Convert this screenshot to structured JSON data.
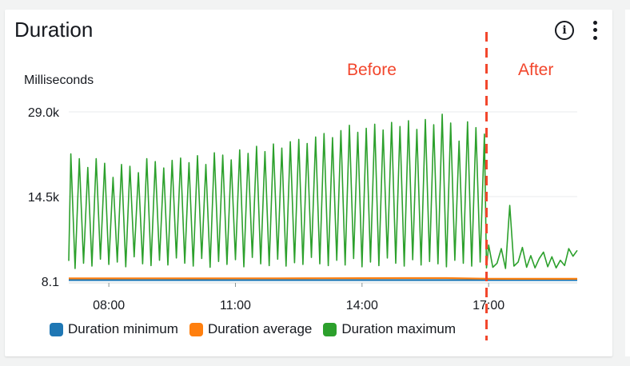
{
  "widget": {
    "title": "Duration"
  },
  "chart_data": {
    "type": "line",
    "title": "Duration",
    "ylabel": "Milliseconds",
    "yticks": [
      "29.0k",
      "14.5k",
      "8.1"
    ],
    "yticks_values": [
      29000,
      14500,
      8.1
    ],
    "ylim": [
      8.1,
      29000
    ],
    "xticks": [
      "08:00",
      "11:00",
      "14:00",
      "17:00"
    ],
    "xticks_hours": [
      8,
      11,
      14,
      17
    ],
    "xlim_hours": [
      7.05,
      19.1
    ],
    "grid": "horizontal",
    "legend_position": "bottom",
    "annotations": {
      "before": "Before",
      "after": "After",
      "divider_hour": 16.95
    },
    "series": [
      {
        "name": "Duration minimum",
        "color": "#1f77b4",
        "x": [
          7.05,
          8,
          9,
          10,
          11,
          12,
          13,
          14,
          15,
          16,
          17,
          18,
          19.1
        ],
        "values": [
          220,
          220,
          220,
          220,
          220,
          220,
          220,
          220,
          220,
          220,
          220,
          220,
          220
        ]
      },
      {
        "name": "Duration average",
        "color": "#ff7f0e",
        "x": [
          7.05,
          8,
          9,
          10,
          11,
          12,
          13,
          14,
          15,
          16,
          17,
          18,
          19.1
        ],
        "values": [
          500,
          500,
          520,
          500,
          510,
          520,
          530,
          540,
          560,
          560,
          450,
          430,
          430
        ]
      },
      {
        "name": "Duration maximum",
        "color": "#2ca02c",
        "x": [
          7.05,
          7.1,
          7.2,
          7.3,
          7.4,
          7.5,
          7.6,
          7.7,
          7.8,
          7.9,
          8.0,
          8.1,
          8.2,
          8.3,
          8.4,
          8.5,
          8.6,
          8.7,
          8.8,
          8.9,
          9.0,
          9.1,
          9.2,
          9.3,
          9.4,
          9.5,
          9.6,
          9.7,
          9.8,
          9.9,
          10.0,
          10.1,
          10.2,
          10.3,
          10.4,
          10.5,
          10.6,
          10.7,
          10.8,
          10.9,
          11.0,
          11.1,
          11.2,
          11.3,
          11.4,
          11.5,
          11.6,
          11.7,
          11.8,
          11.9,
          12.0,
          12.1,
          12.2,
          12.3,
          12.4,
          12.5,
          12.6,
          12.7,
          12.8,
          12.9,
          13.0,
          13.1,
          13.2,
          13.3,
          13.4,
          13.5,
          13.6,
          13.7,
          13.8,
          13.9,
          14.0,
          14.1,
          14.2,
          14.3,
          14.4,
          14.5,
          14.6,
          14.7,
          14.8,
          14.9,
          15.0,
          15.1,
          15.2,
          15.3,
          15.4,
          15.5,
          15.6,
          15.7,
          15.8,
          15.9,
          16.0,
          16.1,
          16.2,
          16.3,
          16.4,
          16.5,
          16.6,
          16.7,
          16.8,
          16.9,
          16.95,
          17.0,
          17.1,
          17.2,
          17.3,
          17.4,
          17.5,
          17.6,
          17.7,
          17.8,
          17.9,
          18.0,
          18.1,
          18.2,
          18.3,
          18.4,
          18.5,
          18.6,
          18.7,
          18.8,
          18.9,
          19.0,
          19.1
        ],
        "values": [
          3500,
          21800,
          2200,
          21000,
          3100,
          19500,
          2600,
          21000,
          3800,
          20200,
          2900,
          17800,
          3300,
          20000,
          2500,
          19700,
          4200,
          18600,
          3000,
          21000,
          2700,
          20500,
          3600,
          19400,
          2800,
          20700,
          4000,
          21100,
          3100,
          20300,
          2600,
          21500,
          3900,
          20000,
          2400,
          22000,
          3400,
          21600,
          2900,
          20800,
          3700,
          22500,
          2500,
          21900,
          4100,
          23100,
          3000,
          22200,
          2700,
          23500,
          3800,
          22800,
          2600,
          23900,
          3200,
          24300,
          2900,
          23600,
          4100,
          24700,
          3000,
          25300,
          2700,
          24600,
          3600,
          25800,
          2800,
          26700,
          3900,
          25500,
          2500,
          26200,
          3300,
          26900,
          2700,
          25900,
          4000,
          27200,
          3100,
          26500,
          2600,
          27500,
          3700,
          26000,
          2800,
          27700,
          3400,
          26800,
          3000,
          28600,
          2500,
          27100,
          3600,
          24000,
          3100,
          27300,
          2600,
          26300,
          3300,
          25200,
          2300,
          6200,
          2400,
          3100,
          5600,
          2200,
          13000,
          2600,
          3300,
          5800,
          2400,
          4400,
          2300,
          3900,
          5000,
          2500,
          4200,
          2300,
          3600,
          2700,
          5600,
          4300,
          5300
        ]
      }
    ]
  }
}
